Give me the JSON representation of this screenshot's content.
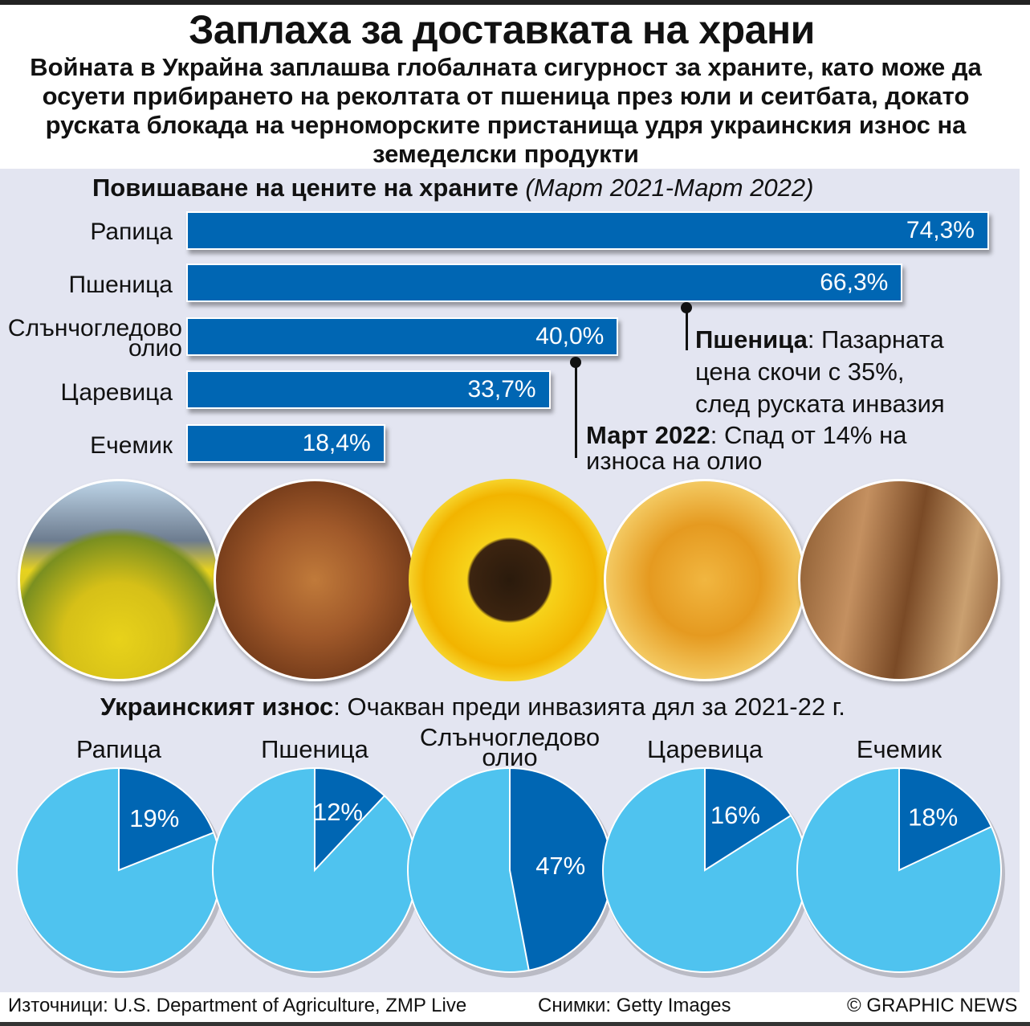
{
  "title": "Заплаха за доставката на храни",
  "subtitle": "Войната в Украйна заплашва глобалната сигурност за храните, като може да осуети прибирането на реколтата от пшеница през юли и сеитбата, докато руската блокада на черноморските пристанища удря украинския износ на земеделски продукти",
  "colors": {
    "bar": "#0066b3",
    "pie_light": "#4fc3ef",
    "pie_dark": "#0066b3",
    "panel": "#e3e5f1"
  },
  "chart_data": [
    {
      "type": "bar",
      "orientation": "horizontal",
      "title": "Повишаване на цените на храните",
      "subtitle": "(Март 2021-Март 2022)",
      "categories": [
        "Рапица",
        "Пшеница",
        "Слънчогледово олио",
        "Царевица",
        "Ечемик"
      ],
      "values": [
        74.3,
        66.3,
        40.0,
        33.7,
        18.4
      ],
      "labels": [
        "74,3%",
        "66,3%",
        "40,0%",
        "33,7%",
        "18,4%"
      ]
    },
    {
      "type": "pie",
      "title": "Украинският износ",
      "subtitle": "Очакван преди инвазията дял за 2021-22 г.",
      "categories": [
        "Рапица",
        "Пшеница",
        "Слънчогледово олио",
        "Царевица",
        "Ечемик"
      ],
      "values": [
        19,
        12,
        47,
        16,
        18
      ],
      "labels": [
        "19%",
        "12%",
        "47%",
        "16%",
        "18%"
      ]
    }
  ],
  "bar_labels": [
    "Рапица",
    "Пшеница",
    "Слънчогледово",
    "олио",
    "Царевица",
    "Ечемик"
  ],
  "annotations": {
    "wheat_bold": "Пшеница",
    "wheat_text1": ": Пазарната",
    "wheat_text2": "цена скочи с 35%,",
    "wheat_text3": "след руската инвазия",
    "oil_bold": "Март 2022",
    "oil_text1": ": Спад от 14% на",
    "oil_text2": "износа на олио"
  },
  "exports": {
    "bold": "Украинският износ",
    "text": ": Очакван преди инвазията дял за 2021-22 г."
  },
  "pie_labels": [
    "Рапица",
    "Пшеница",
    "Слънчогледово",
    "олио",
    "Царевица",
    "Ечемик"
  ],
  "footer": {
    "sources": "Източници: U.S. Department of Agriculture, ZMP Live",
    "photos": "Снимки: Getty Images",
    "copyright": "© GRAPHIC NEWS"
  }
}
